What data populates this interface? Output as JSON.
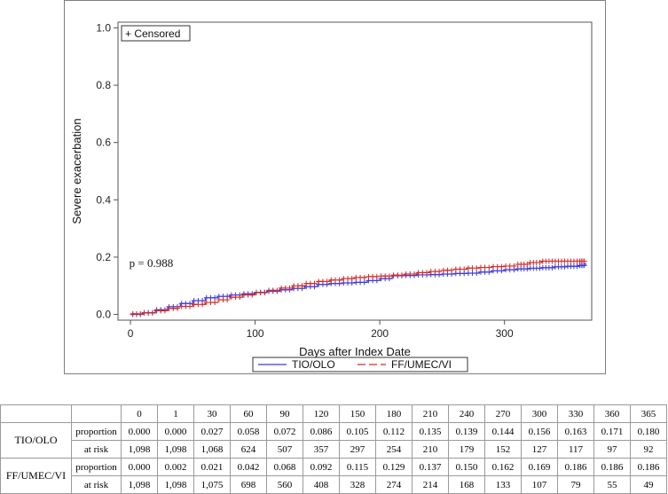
{
  "chart_data": {
    "type": "line",
    "title": "",
    "xlabel": "Days after Index Date",
    "ylabel": "Severe exacerbation",
    "xlim": [
      -10,
      370
    ],
    "ylim": [
      -0.02,
      1.02
    ],
    "x_ticks": [
      0,
      100,
      200,
      300
    ],
    "y_ticks": [
      "0.0",
      "0.2",
      "0.4",
      "0.6",
      "0.8",
      "1.0"
    ],
    "censor_note": "+ Censored",
    "annotation": "p = 0.988",
    "legend_position": "bottom",
    "series": [
      {
        "name": "TIO/OLO",
        "color": "#3b3bdc",
        "dash": "solid",
        "x": [
          0,
          1,
          10,
          20,
          30,
          40,
          50,
          60,
          70,
          80,
          90,
          100,
          110,
          120,
          130,
          140,
          150,
          160,
          170,
          180,
          190,
          200,
          210,
          220,
          230,
          240,
          250,
          260,
          270,
          280,
          290,
          300,
          310,
          320,
          330,
          340,
          350,
          360,
          365
        ],
        "y": [
          0.0,
          0.0,
          0.006,
          0.016,
          0.027,
          0.038,
          0.048,
          0.058,
          0.063,
          0.068,
          0.072,
          0.077,
          0.081,
          0.086,
          0.091,
          0.097,
          0.105,
          0.108,
          0.11,
          0.112,
          0.118,
          0.125,
          0.135,
          0.136,
          0.138,
          0.139,
          0.141,
          0.143,
          0.144,
          0.148,
          0.152,
          0.156,
          0.159,
          0.161,
          0.163,
          0.166,
          0.168,
          0.171,
          0.18
        ]
      },
      {
        "name": "FF/UMEC/VI",
        "color": "#d02a2a",
        "dash": "long-dash",
        "x": [
          0,
          1,
          10,
          20,
          30,
          40,
          50,
          60,
          70,
          80,
          90,
          100,
          110,
          120,
          130,
          140,
          150,
          160,
          170,
          180,
          190,
          200,
          210,
          220,
          230,
          240,
          250,
          260,
          270,
          280,
          290,
          300,
          310,
          320,
          330,
          340,
          350,
          360,
          365
        ],
        "y": [
          0.0,
          0.002,
          0.005,
          0.013,
          0.021,
          0.028,
          0.035,
          0.042,
          0.051,
          0.06,
          0.068,
          0.076,
          0.084,
          0.092,
          0.1,
          0.108,
          0.115,
          0.12,
          0.125,
          0.129,
          0.132,
          0.134,
          0.137,
          0.141,
          0.146,
          0.15,
          0.154,
          0.158,
          0.162,
          0.164,
          0.167,
          0.169,
          0.175,
          0.181,
          0.186,
          0.186,
          0.186,
          0.186,
          0.186
        ]
      }
    ]
  },
  "risk_table": {
    "timepoints": [
      "0",
      "1",
      "30",
      "60",
      "90",
      "120",
      "150",
      "180",
      "210",
      "240",
      "270",
      "300",
      "330",
      "360",
      "365"
    ],
    "groups": [
      {
        "name": "TIO/OLO",
        "rows": [
          {
            "label": "proportion",
            "values": [
              "0.000",
              "0.000",
              "0.027",
              "0.058",
              "0.072",
              "0.086",
              "0.105",
              "0.112",
              "0.135",
              "0.139",
              "0.144",
              "0.156",
              "0.163",
              "0.171",
              "0.180"
            ]
          },
          {
            "label": "at risk",
            "values": [
              "1,098",
              "1,098",
              "1,068",
              "624",
              "507",
              "357",
              "297",
              "254",
              "210",
              "179",
              "152",
              "127",
              "117",
              "97",
              "92"
            ]
          }
        ]
      },
      {
        "name": "FF/UMEC/VI",
        "rows": [
          {
            "label": "proportion",
            "values": [
              "0.000",
              "0.002",
              "0.021",
              "0.042",
              "0.068",
              "0.092",
              "0.115",
              "0.129",
              "0.137",
              "0.150",
              "0.162",
              "0.169",
              "0.186",
              "0.186",
              "0.186"
            ]
          },
          {
            "label": "at risk",
            "values": [
              "1,098",
              "1,098",
              "1,075",
              "698",
              "560",
              "408",
              "328",
              "274",
              "214",
              "168",
              "133",
              "107",
              "79",
              "55",
              "49"
            ]
          }
        ]
      }
    ]
  }
}
